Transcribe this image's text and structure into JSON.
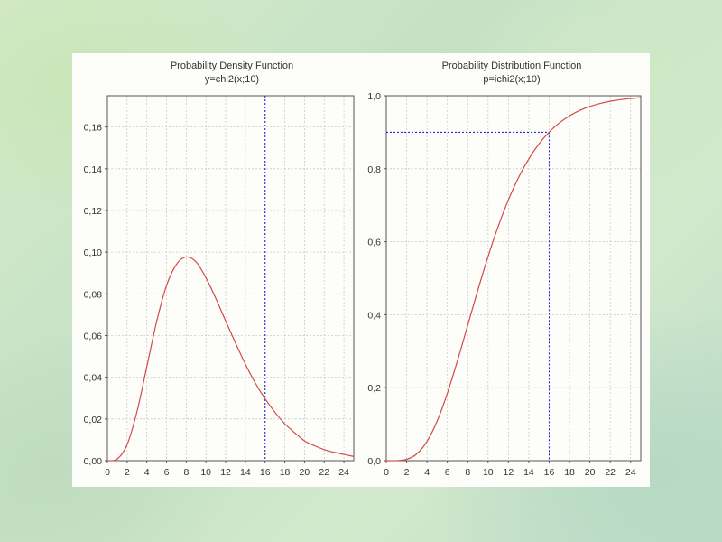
{
  "chart_data": [
    {
      "type": "line",
      "title": "Probability Density Function",
      "subtitle": "y=chi2(x;10)",
      "distribution": "chi2",
      "df": 10,
      "function": "pdf",
      "xlim": [
        0,
        25
      ],
      "ylim": [
        0,
        0.175
      ],
      "x_ticks": [
        0,
        2,
        4,
        6,
        8,
        10,
        12,
        14,
        16,
        18,
        20,
        22,
        24
      ],
      "x_tick_labels": [
        "0",
        "2",
        "4",
        "6",
        "8",
        "10",
        "12",
        "14",
        "16",
        "18",
        "20",
        "22",
        "24"
      ],
      "y_ticks": [
        0,
        0.02,
        0.04,
        0.06,
        0.08,
        0.1,
        0.12,
        0.14,
        0.16
      ],
      "y_tick_labels": [
        "0,00",
        "0,02",
        "0,04",
        "0,06",
        "0,08",
        "0,10",
        "0,12",
        "0,14",
        "0,16"
      ],
      "grid": true,
      "marker_x": 16,
      "series": [
        {
          "color": "#d44848",
          "x": [
            0,
            1,
            2,
            3,
            4,
            5,
            6,
            7,
            8,
            9,
            10,
            11,
            12,
            13,
            14,
            15,
            16,
            17,
            18,
            19,
            20,
            21,
            22,
            23,
            24,
            25
          ],
          "y": [
            0,
            0.0008,
            0.0077,
            0.0235,
            0.0451,
            0.0668,
            0.084,
            0.0941,
            0.0977,
            0.0953,
            0.0877,
            0.0778,
            0.067,
            0.0564,
            0.0463,
            0.0373,
            0.0297,
            0.0232,
            0.0177,
            0.0134,
            0.0095,
            0.0072,
            0.0053,
            0.004,
            0.003,
            0.002
          ]
        }
      ]
    },
    {
      "type": "line",
      "title": "Probability Distribution Function",
      "subtitle": "p=ichi2(x;10)",
      "distribution": "chi2",
      "df": 10,
      "function": "cdf",
      "xlim": [
        0,
        25
      ],
      "ylim": [
        0,
        1.0
      ],
      "x_ticks": [
        0,
        2,
        4,
        6,
        8,
        10,
        12,
        14,
        16,
        18,
        20,
        22,
        24
      ],
      "x_tick_labels": [
        "0",
        "2",
        "4",
        "6",
        "8",
        "10",
        "12",
        "14",
        "16",
        "18",
        "20",
        "22",
        "24"
      ],
      "y_ticks": [
        0,
        0.2,
        0.4,
        0.6,
        0.8,
        1.0
      ],
      "y_tick_labels": [
        "0,0",
        "0,2",
        "0,4",
        "0,6",
        "0,8",
        "1,0"
      ],
      "grid": true,
      "marker_x": 16,
      "marker_y": 0.9,
      "series": [
        {
          "color": "#d44848",
          "x": [
            0,
            1,
            2,
            3,
            4,
            5,
            6,
            7,
            8,
            9,
            10,
            11,
            12,
            13,
            14,
            15,
            16,
            17,
            18,
            19,
            20,
            21,
            22,
            23,
            24,
            25
          ],
          "y": [
            0,
            0.0002,
            0.0037,
            0.0186,
            0.0527,
            0.1088,
            0.1847,
            0.2745,
            0.3712,
            0.4679,
            0.5595,
            0.6425,
            0.7149,
            0.7763,
            0.827,
            0.8679,
            0.9004,
            0.9256,
            0.945,
            0.9597,
            0.9707,
            0.9789,
            0.9849,
            0.9893,
            0.9924,
            0.9947
          ]
        }
      ]
    }
  ]
}
